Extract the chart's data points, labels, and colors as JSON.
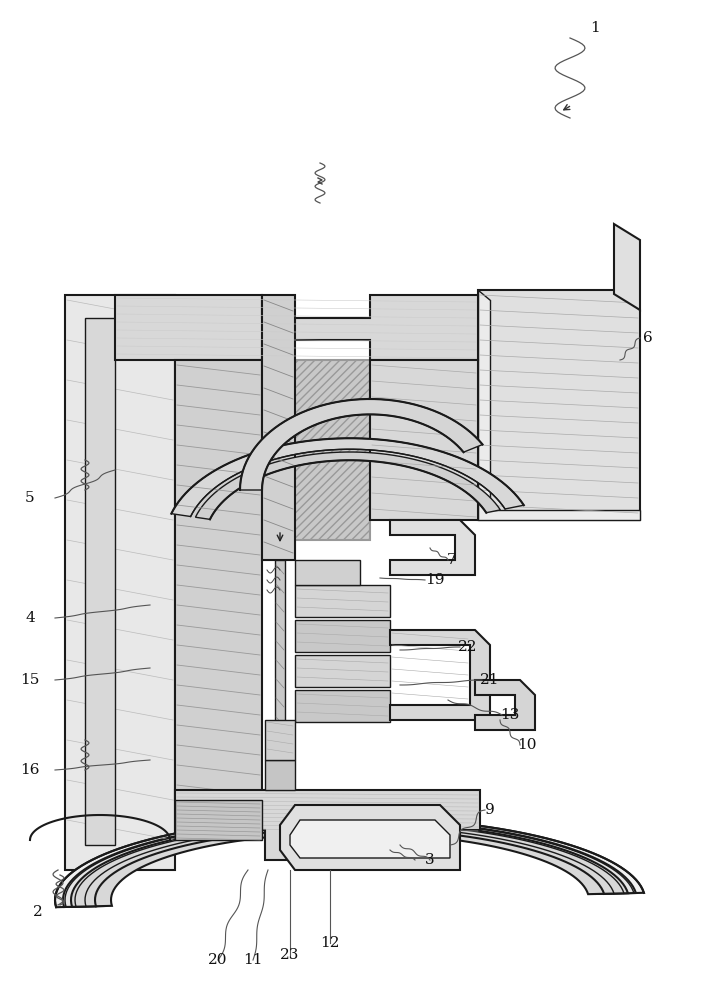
{
  "bg": "#ffffff",
  "lc": "#1a1a1a",
  "hatch_gray": "#888888",
  "fill_white": "#f5f5f5",
  "fill_light": "#e8e8e8",
  "fill_med": "#d0d0d0",
  "fill_dark": "#b0b0b0",
  "fig_w": 7.01,
  "fig_h": 10.0,
  "labels": [
    [
      "1",
      595,
      28
    ],
    [
      "2",
      38,
      912
    ],
    [
      "3",
      430,
      860
    ],
    [
      "4",
      30,
      618
    ],
    [
      "5",
      30,
      498
    ],
    [
      "6",
      648,
      338
    ],
    [
      "7",
      452,
      572
    ],
    [
      "9",
      490,
      800
    ],
    [
      "10",
      527,
      745
    ],
    [
      "11",
      253,
      960
    ],
    [
      "12",
      330,
      943
    ],
    [
      "13",
      510,
      715
    ],
    [
      "15",
      30,
      680
    ],
    [
      "16",
      30,
      770
    ],
    [
      "19",
      435,
      580
    ],
    [
      "20",
      218,
      960
    ],
    [
      "21",
      490,
      680
    ],
    [
      "22",
      468,
      647
    ],
    [
      "23",
      290,
      955
    ]
  ]
}
